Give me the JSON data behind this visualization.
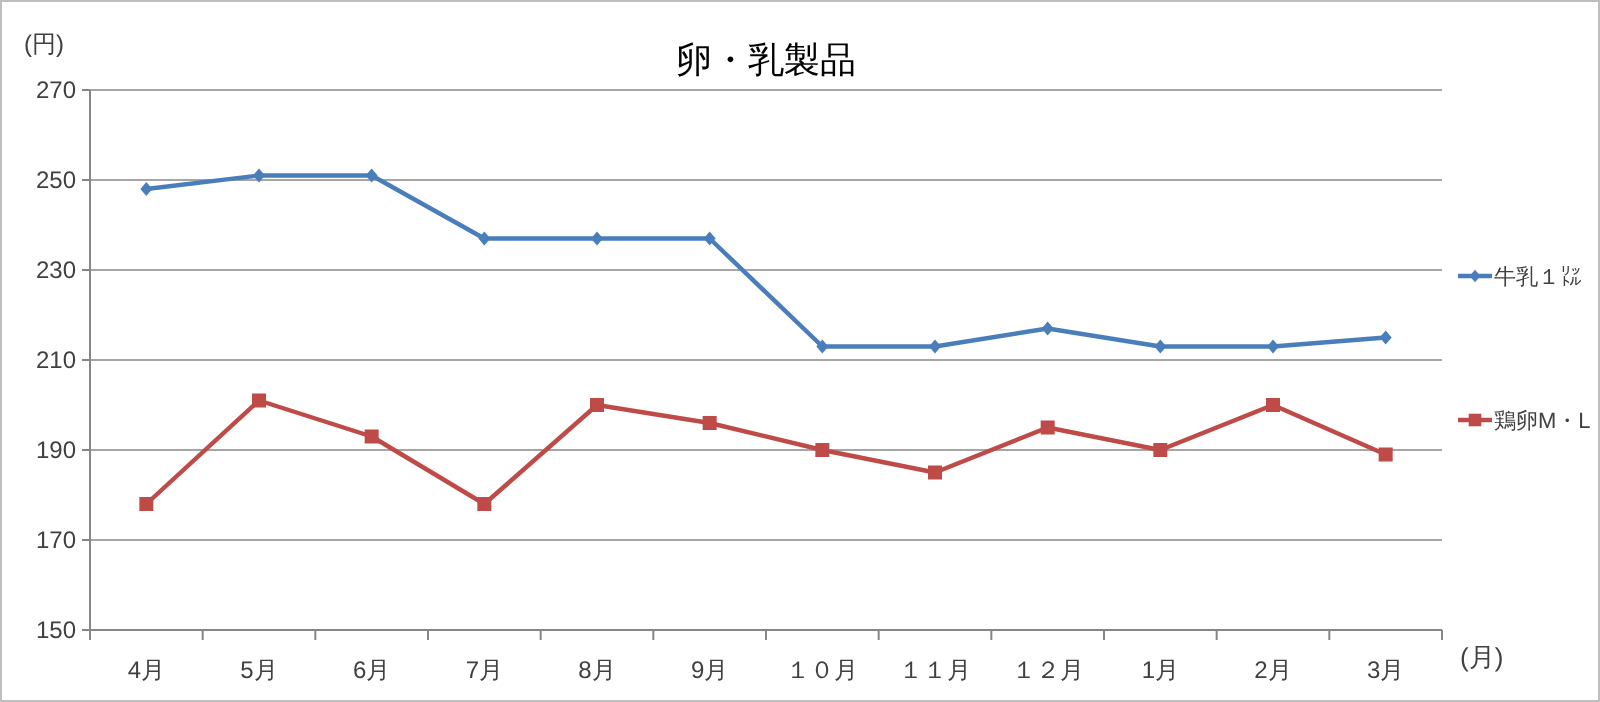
{
  "chart_data": {
    "type": "line",
    "title": "卵・乳製品",
    "ylabel": "(円)",
    "xlabel": "(月)",
    "categories": [
      "4月",
      "5月",
      "6月",
      "7月",
      "8月",
      "9月",
      "１０月",
      "１１月",
      "１２月",
      "1月",
      "2月",
      "3月"
    ],
    "series": [
      {
        "name": "牛乳１㍑",
        "color": "#4a7ebb",
        "marker": "diamond",
        "values": [
          248,
          251,
          251,
          237,
          237,
          237,
          213,
          213,
          217,
          213,
          213,
          215
        ]
      },
      {
        "name": "鶏卵M・L",
        "color": "#be4b48",
        "marker": "square",
        "values": [
          178,
          201,
          193,
          178,
          200,
          196,
          190,
          185,
          195,
          190,
          200,
          189
        ]
      }
    ],
    "ylim": [
      150,
      270
    ],
    "yticks": [
      150,
      170,
      190,
      210,
      230,
      250,
      270
    ],
    "grid": "y",
    "legend": "right"
  }
}
